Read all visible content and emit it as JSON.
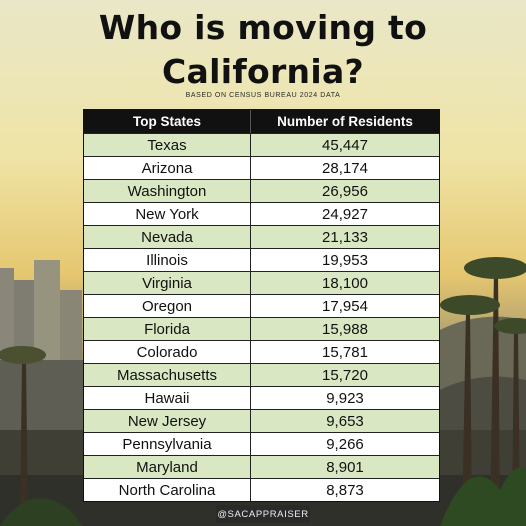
{
  "title_line1": "Who is moving to",
  "title_line2": "California?",
  "subtitle": "BASED ON CENSUS BUREAU 2024 DATA",
  "watermark": "@SACAPPRAISER",
  "colors": {
    "header_bg": "#111111",
    "stripe": "#d9e8c3",
    "row": "#ffffff"
  },
  "chart_data": {
    "type": "table",
    "columns": [
      "Top States",
      "Number of Residents"
    ],
    "rows": [
      [
        "Texas",
        "45,447"
      ],
      [
        "Arizona",
        "28,174"
      ],
      [
        "Washington",
        "26,956"
      ],
      [
        "New York",
        "24,927"
      ],
      [
        "Nevada",
        "21,133"
      ],
      [
        "Illinois",
        "19,953"
      ],
      [
        "Virginia",
        "18,100"
      ],
      [
        "Oregon",
        "17,954"
      ],
      [
        "Florida",
        "15,988"
      ],
      [
        "Colorado",
        "15,781"
      ],
      [
        "Massachusetts",
        "15,720"
      ],
      [
        "Hawaii",
        "9,923"
      ],
      [
        "New Jersey",
        "9,653"
      ],
      [
        "Pennsylvania",
        "9,266"
      ],
      [
        "Maryland",
        "8,901"
      ],
      [
        "North Carolina",
        "8,873"
      ]
    ]
  }
}
